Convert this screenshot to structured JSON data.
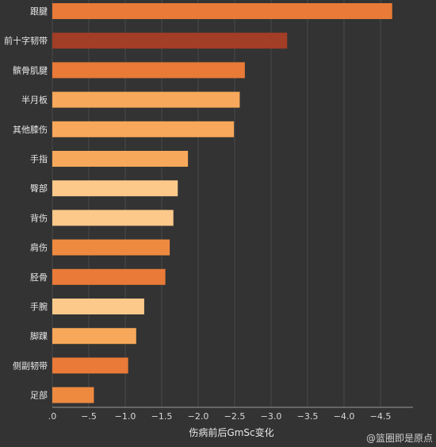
{
  "chart_data": {
    "type": "bar",
    "orientation": "horizontal",
    "categories": [
      "跟腱",
      "前十字韧带",
      "髌骨肌腱",
      "半月板",
      "其他膝伤",
      "手指",
      "臀部",
      "背伤",
      "肩伤",
      "胫骨",
      "手腕",
      "脚踝",
      "侧副韧带",
      "足部"
    ],
    "values": [
      -4.66,
      -3.22,
      -2.64,
      -2.57,
      -2.49,
      -1.86,
      -1.72,
      -1.66,
      -1.61,
      -1.55,
      -1.26,
      -1.15,
      -1.04,
      -0.57
    ],
    "colors": [
      "#e97a38",
      "#a23d26",
      "#e97a38",
      "#f7a85a",
      "#f7a85a",
      "#f7a85a",
      "#fcc98a",
      "#fcc98a",
      "#ee8a40",
      "#e97a38",
      "#fcc98a",
      "#f7a85a",
      "#e97a38",
      "#ee8a40"
    ],
    "xlabel": "伤病前后GmSc变化",
    "ylabel": "",
    "xlim": [
      0,
      -4.8
    ],
    "ticks": [
      0,
      -0.5,
      -1.0,
      -1.5,
      -2.0,
      -2.5,
      -3.0,
      -3.5,
      -4.0,
      -4.5
    ],
    "tick_labels": [
      ".0",
      "−.5",
      "−1.0",
      "−1.5",
      "−2.0",
      "−2.5",
      "−3.0",
      "−3.5",
      "−4.0",
      "−4.5"
    ],
    "grid": true,
    "legend": "none"
  },
  "watermark": "@篮圈即是原点",
  "colors": {
    "background": "#333333",
    "grid": "#4a4a4a",
    "axis": "#9a9a9a"
  }
}
